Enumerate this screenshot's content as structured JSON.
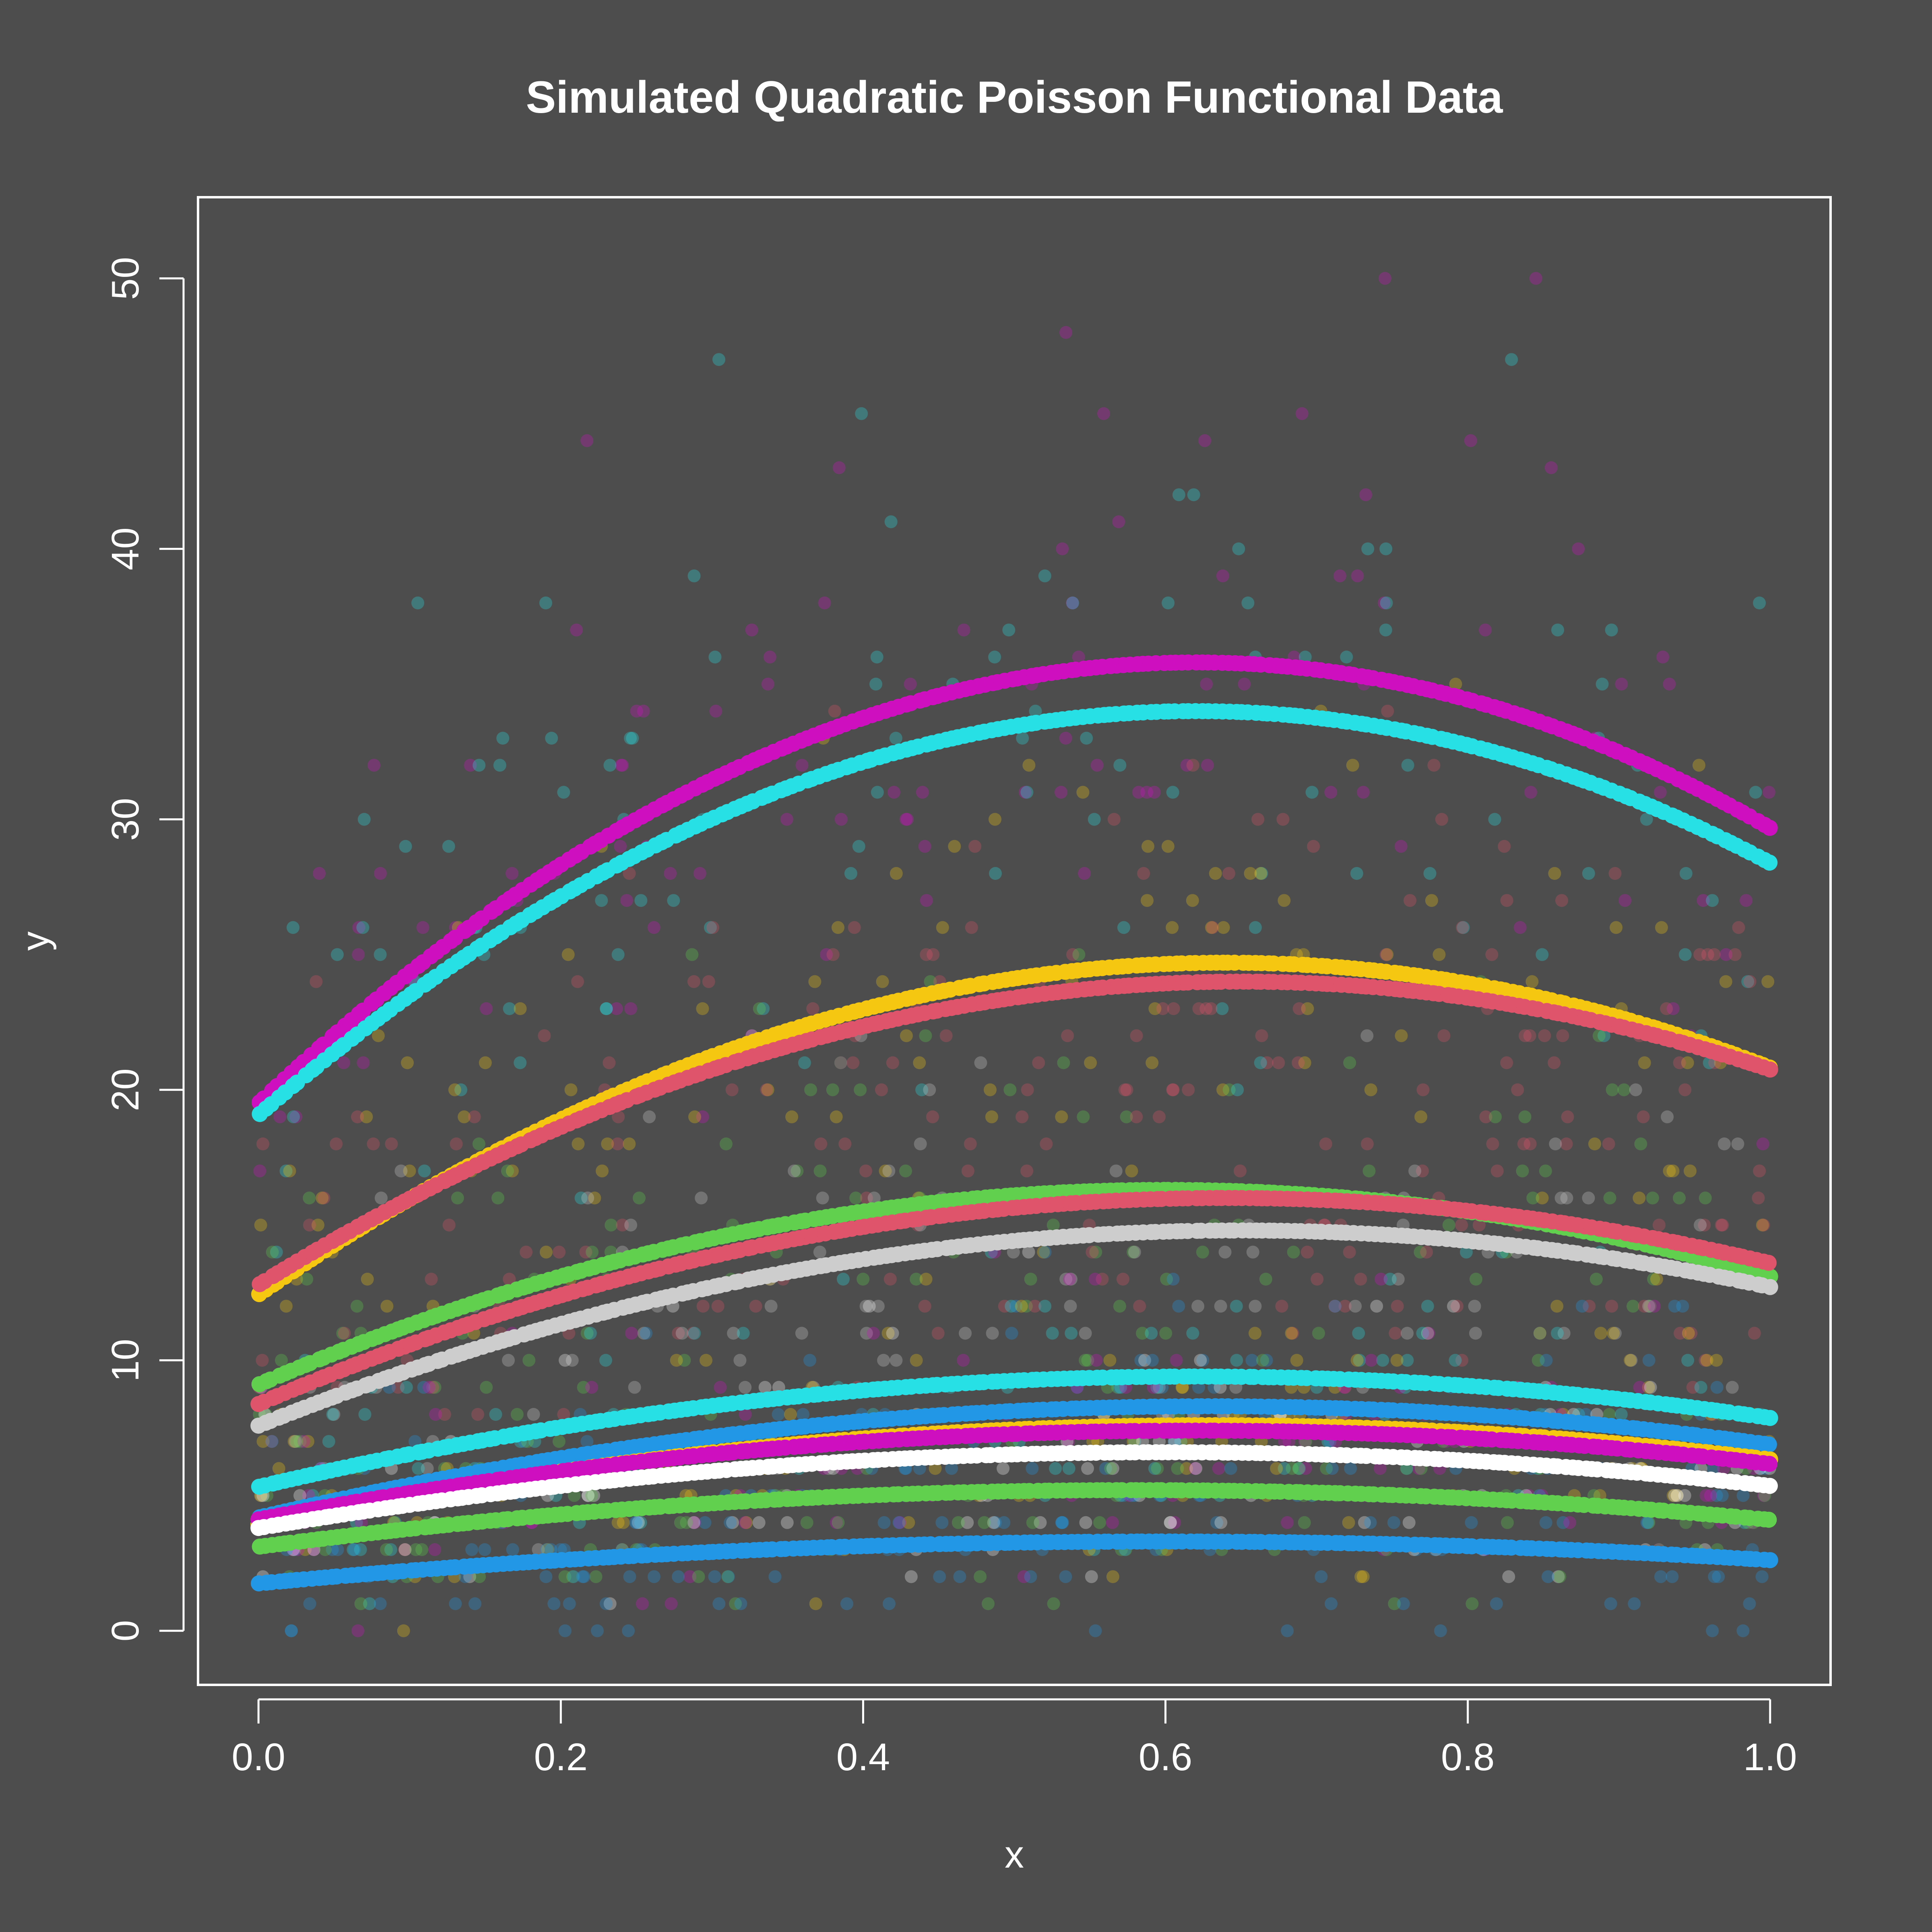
{
  "chart_data": {
    "type": "scatter",
    "title": "Simulated Quadratic Poisson Functional Data",
    "xlabel": "x",
    "ylabel": "y",
    "xlim": [
      -0.04,
      1.04
    ],
    "ylim": [
      -2,
      53
    ],
    "xticks": [
      "0.0",
      "0.2",
      "0.4",
      "0.6",
      "0.8",
      "1.0"
    ],
    "yticks": [
      "0",
      "10",
      "20",
      "30",
      "40",
      "50"
    ],
    "grid": false,
    "background": "#4d4d4d",
    "foreground": "#ffffff",
    "curves": [
      {
        "color": "#ce0fc0",
        "y_at_0": 21.3,
        "peak_x": 0.62,
        "peak_y": 35.8,
        "y_at_1": 29.0
      },
      {
        "color": "#27e0e6",
        "y_at_0": 19.3,
        "peak_x": 0.62,
        "peak_y": 34.0,
        "y_at_1": 28.3
      },
      {
        "color": "#f5c710",
        "y_at_0": 14.7,
        "peak_x": 0.64,
        "peak_y": 24.7,
        "y_at_1": 20.1
      },
      {
        "color": "#df536b",
        "y_at_0": 13.3,
        "peak_x": 0.65,
        "peak_y": 24.0,
        "y_at_1": 20.6
      },
      {
        "color": "#61d04f",
        "y_at_0": 10.0,
        "peak_x": 0.6,
        "peak_y": 16.3,
        "y_at_1": 12.7
      },
      {
        "color": "#df536b",
        "y_at_0": 9.3,
        "peak_x": 0.64,
        "peak_y": 16.0,
        "y_at_1": 13.3
      },
      {
        "color": "#cdcdcd",
        "y_at_0": 8.3,
        "peak_x": 0.65,
        "peak_y": 14.8,
        "y_at_1": 12.5
      },
      {
        "color": "#27e0e6",
        "y_at_0": 5.5,
        "peak_x": 0.62,
        "peak_y": 9.4,
        "y_at_1": 7.8
      },
      {
        "color": "#2297e6",
        "y_at_0": 5.0,
        "peak_x": 0.63,
        "peak_y": 8.3,
        "y_at_1": 6.6
      },
      {
        "color": "#f5c710",
        "y_at_0": 4.6,
        "peak_x": 0.63,
        "peak_y": 7.6,
        "y_at_1": 6.1
      },
      {
        "color": "#ce0fc0",
        "y_at_0": 4.3,
        "peak_x": 0.62,
        "peak_y": 7.4,
        "y_at_1": 6.1
      },
      {
        "color": "#ffffff",
        "y_at_0": 3.7,
        "peak_x": 0.6,
        "peak_y": 6.6,
        "y_at_1": 5.4
      },
      {
        "color": "#61d04f",
        "y_at_0": 3.3,
        "peak_x": 0.58,
        "peak_y": 5.2,
        "y_at_1": 4.0
      },
      {
        "color": "#2297e6",
        "y_at_0": 2.0,
        "peak_x": 0.6,
        "peak_y": 3.3,
        "y_at_1": 2.5
      }
    ],
    "observations": {
      "description": "Poisson-distributed integer counts around each curve, drawn semi-transparent in the matching series colour",
      "x_range": [
        0,
        1
      ],
      "y_range": [
        0,
        51
      ]
    }
  }
}
